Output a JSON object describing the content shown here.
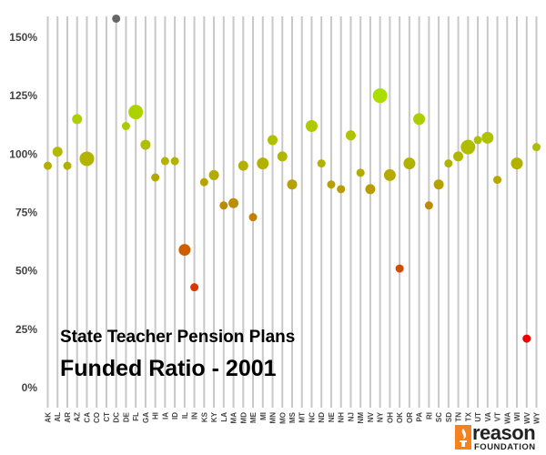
{
  "chart_data": {
    "type": "scatter",
    "title": "State Teacher Pension Plans",
    "subtitle": "Funded Ratio - 2001",
    "xlabel": "",
    "ylabel": "",
    "ylim": [
      0,
      155
    ],
    "yticks": [
      0,
      25,
      50,
      75,
      100,
      125,
      150
    ],
    "ytick_labels": [
      "0%",
      "25%",
      "50%",
      "75%",
      "100%",
      "125%",
      "150%"
    ],
    "grid": "vertical lines at each state",
    "categories": [
      "AK",
      "AL",
      "AR",
      "AZ",
      "CA",
      "CO",
      "CT",
      "DC",
      "DE",
      "FL",
      "GA",
      "HI",
      "IA",
      "ID",
      "IL",
      "IN",
      "KS",
      "KY",
      "LA",
      "MA",
      "MD",
      "ME",
      "MI",
      "MN",
      "MO",
      "MS",
      "MT",
      "NC",
      "ND",
      "NE",
      "NH",
      "NJ",
      "NM",
      "NV",
      "NY",
      "OH",
      "OK",
      "OR",
      "PA",
      "RI",
      "SC",
      "SD",
      "TN",
      "TX",
      "UT",
      "VA",
      "VT",
      "WA",
      "WI",
      "WV",
      "WY"
    ],
    "values": [
      95,
      101,
      95,
      115,
      98,
      null,
      null,
      158,
      112,
      118,
      104,
      90,
      97,
      97,
      59,
      43,
      88,
      91,
      78,
      79,
      95,
      73,
      96,
      106,
      99,
      87,
      null,
      112,
      96,
      87,
      85,
      108,
      92,
      85,
      125,
      91,
      51,
      96,
      115,
      78,
      87,
      96,
      99,
      103,
      106,
      107,
      89,
      null,
      96,
      21,
      103
    ],
    "sizes": [
      2,
      3,
      2,
      3,
      5,
      null,
      null,
      2,
      2,
      5,
      3,
      2,
      2,
      2,
      4,
      2,
      2,
      3,
      2,
      3,
      3,
      2,
      4,
      3,
      3,
      3,
      null,
      4,
      2,
      2,
      2,
      3,
      2,
      3,
      5,
      4,
      2,
      4,
      4,
      2,
      3,
      2,
      3,
      5,
      2,
      4,
      2,
      null,
      4,
      2,
      2
    ],
    "colors": {
      "high": "#aadd00",
      "mid": "#b4a800",
      "low": "#ee0000",
      "dc_marker": "#666666",
      "gridline": "#c8c8c8"
    }
  },
  "branding": {
    "logo_word": "reason",
    "logo_sub": "FOUNDATION",
    "logo_color": "#f58220"
  }
}
